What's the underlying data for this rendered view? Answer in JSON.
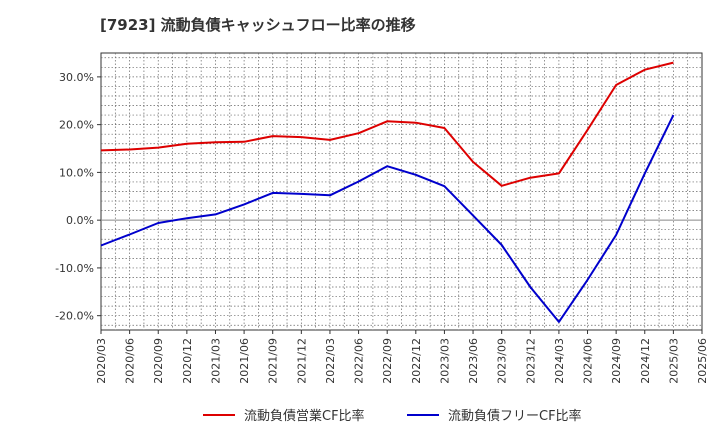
{
  "title": "[7923]  流動負債キャッシュフロー比率の推移",
  "colors": {
    "series1": "#dd0000",
    "series2": "#0000cc",
    "zero_line": "#888888",
    "grid": "#666666"
  },
  "chart_data": {
    "type": "line",
    "title": "[7923]  流動負債キャッシュフロー比率の推移",
    "xlabel": "",
    "ylabel": "",
    "ylim": [
      -23,
      35
    ],
    "grid": true,
    "legend_position": "bottom",
    "x": [
      "2020/03",
      "2020/06",
      "2020/09",
      "2020/12",
      "2021/03",
      "2021/06",
      "2021/09",
      "2021/12",
      "2022/03",
      "2022/06",
      "2022/09",
      "2022/12",
      "2023/03",
      "2023/06",
      "2023/09",
      "2023/12",
      "2024/03",
      "2024/06",
      "2024/09",
      "2024/12",
      "2025/03",
      "2025/06"
    ],
    "y_ticks": [
      "30.0%",
      "20.0%",
      "10.0%",
      "0.0%",
      "-10.0%",
      "-20.0%"
    ],
    "y_tick_values": [
      30,
      20,
      10,
      0,
      -10,
      -20
    ],
    "series": [
      {
        "name": "流動負債営業CF比率",
        "color": "#dd0000",
        "values": [
          14.6,
          14.8,
          15.2,
          16.0,
          16.3,
          16.4,
          17.6,
          17.4,
          16.8,
          18.2,
          20.7,
          20.4,
          19.3,
          12.2,
          7.2,
          8.9,
          9.8,
          18.9,
          28.3,
          31.5,
          33.0,
          null
        ]
      },
      {
        "name": "流動負債フリーCF比率",
        "color": "#0000cc",
        "values": [
          -5.3,
          -3.0,
          -0.6,
          0.4,
          1.2,
          3.3,
          5.7,
          5.5,
          5.2,
          8.1,
          11.3,
          9.5,
          7.1,
          1.0,
          -5.2,
          -14.0,
          -21.3,
          -12.5,
          -3.1,
          9.8,
          22.0,
          null
        ]
      }
    ]
  }
}
